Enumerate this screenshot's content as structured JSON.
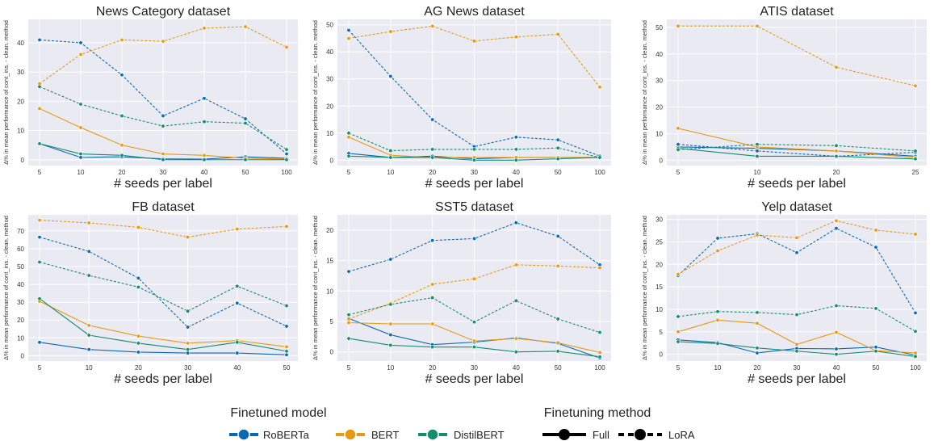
{
  "colors": {
    "RoBERTa": "#0a69b3",
    "BERT": "#e69a14",
    "DistilBERT": "#138d6e",
    "panel_bg": "#eaeaf2",
    "grid": "#ffffff"
  },
  "legend": {
    "model_title": "Finetuned model",
    "models": [
      "RoBERTa",
      "BERT",
      "DistilBERT"
    ],
    "method_title": "Finetuning method",
    "methods": [
      {
        "label": "Full",
        "dash": "solid"
      },
      {
        "label": "LoRA",
        "dash": "dashed"
      }
    ]
  },
  "chart_data": [
    {
      "type": "line",
      "title": "News Category dataset",
      "xlabel": "# seeds per label",
      "ylabel": "Δ% in mean performance of cont_ins. - clean. method",
      "categories": [
        "5",
        "10",
        "20",
        "30",
        "40",
        "50",
        "100"
      ],
      "ylim": [
        -2,
        48
      ],
      "yticks": [
        0,
        10,
        20,
        30,
        40
      ],
      "series": [
        {
          "model": "RoBERTa",
          "method": "Full",
          "values": [
            5.5,
            0.8,
            1.0,
            0.3,
            0.2,
            1.0,
            0.5
          ]
        },
        {
          "model": "RoBERTa",
          "method": "LoRA",
          "values": [
            41,
            40,
            29,
            15,
            21,
            14,
            2
          ]
        },
        {
          "model": "BERT",
          "method": "Full",
          "values": [
            17.5,
            11,
            5,
            2,
            1.5,
            0.5,
            0.2
          ]
        },
        {
          "model": "BERT",
          "method": "LoRA",
          "values": [
            26,
            36,
            41,
            40.5,
            45,
            45.5,
            38.5
          ]
        },
        {
          "model": "DistilBERT",
          "method": "Full",
          "values": [
            5.5,
            2,
            1.5,
            0,
            0,
            0,
            0
          ]
        },
        {
          "model": "DistilBERT",
          "method": "LoRA",
          "values": [
            25,
            19,
            15,
            11.5,
            13,
            12.5,
            3.5
          ]
        }
      ]
    },
    {
      "type": "line",
      "title": "AG News dataset",
      "xlabel": "# seeds per label",
      "ylabel": "Δ% in mean performance of cont_ins. - clean. method",
      "categories": [
        "5",
        "10",
        "20",
        "30",
        "40",
        "50",
        "100"
      ],
      "ylim": [
        -2,
        52
      ],
      "yticks": [
        0,
        10,
        20,
        30,
        40,
        50
      ],
      "series": [
        {
          "model": "RoBERTa",
          "method": "Full",
          "values": [
            2.5,
            1,
            1.5,
            0.5,
            1,
            1,
            1
          ]
        },
        {
          "model": "RoBERTa",
          "method": "LoRA",
          "values": [
            48,
            31,
            15,
            5,
            8.5,
            7.5,
            1.5
          ]
        },
        {
          "model": "BERT",
          "method": "Full",
          "values": [
            8.5,
            1.8,
            1,
            1,
            1,
            1,
            1
          ]
        },
        {
          "model": "BERT",
          "method": "LoRA",
          "values": [
            45,
            47.5,
            49.5,
            44,
            45.5,
            46.5,
            27
          ]
        },
        {
          "model": "DistilBERT",
          "method": "Full",
          "values": [
            1.5,
            1,
            1,
            0,
            0,
            0.5,
            1
          ]
        },
        {
          "model": "DistilBERT",
          "method": "LoRA",
          "values": [
            10,
            3.5,
            4,
            4,
            4,
            4.5,
            1
          ]
        }
      ]
    },
    {
      "type": "line",
      "title": "ATIS dataset",
      "xlabel": "# seeds per label",
      "ylabel": "Δ% in mean performance of cont_ins. - clean. method",
      "categories": [
        "5",
        "10",
        "20",
        "25"
      ],
      "ylim": [
        -2,
        53
      ],
      "yticks": [
        0,
        10,
        20,
        30,
        40,
        50
      ],
      "series": [
        {
          "model": "RoBERTa",
          "method": "Full",
          "values": [
            5,
            4.5,
            3.5,
            1.5
          ]
        },
        {
          "model": "RoBERTa",
          "method": "LoRA",
          "values": [
            6,
            3.5,
            1.5,
            3
          ]
        },
        {
          "model": "BERT",
          "method": "Full",
          "values": [
            12,
            5,
            3.5,
            1
          ]
        },
        {
          "model": "BERT",
          "method": "LoRA",
          "values": [
            50.5,
            50.5,
            35,
            28
          ]
        },
        {
          "model": "DistilBERT",
          "method": "Full",
          "values": [
            4.5,
            1.5,
            1.5,
            0.5
          ]
        },
        {
          "model": "DistilBERT",
          "method": "LoRA",
          "values": [
            4,
            6,
            5.5,
            3.5
          ]
        }
      ]
    },
    {
      "type": "line",
      "title": "FB dataset",
      "xlabel": "# seeds per label",
      "ylabel": "Δ% in mean performance of cont_ins. - clean. method",
      "categories": [
        "5",
        "10",
        "20",
        "30",
        "40",
        "50"
      ],
      "ylim": [
        -3,
        79
      ],
      "yticks": [
        0,
        10,
        20,
        30,
        40,
        50,
        60,
        70
      ],
      "series": [
        {
          "model": "RoBERTa",
          "method": "Full",
          "values": [
            7.5,
            3.5,
            2,
            1.5,
            1.5,
            0.5
          ]
        },
        {
          "model": "RoBERTa",
          "method": "LoRA",
          "values": [
            66.5,
            58.5,
            43.5,
            16,
            29.5,
            16.5
          ]
        },
        {
          "model": "BERT",
          "method": "Full",
          "values": [
            30.5,
            17,
            11,
            7,
            8.5,
            5
          ]
        },
        {
          "model": "BERT",
          "method": "LoRA",
          "values": [
            76,
            74.5,
            72,
            66.5,
            71,
            72.5
          ]
        },
        {
          "model": "DistilBERT",
          "method": "Full",
          "values": [
            32,
            11.5,
            7,
            3.5,
            7.5,
            2.5
          ]
        },
        {
          "model": "DistilBERT",
          "method": "LoRA",
          "values": [
            52.5,
            45,
            38.5,
            25,
            39,
            28
          ]
        }
      ]
    },
    {
      "type": "line",
      "title": "SST5 dataset",
      "xlabel": "# seeds per label",
      "ylabel": "Δ% in mean performance of cont_ins. - clean. method",
      "categories": [
        "5",
        "10",
        "20",
        "30",
        "40",
        "50",
        "100"
      ],
      "ylim": [
        -1.5,
        22.5
      ],
      "yticks": [
        0,
        5,
        10,
        15,
        20
      ],
      "series": [
        {
          "model": "RoBERTa",
          "method": "Full",
          "values": [
            5.5,
            2.8,
            1.2,
            1.6,
            2.3,
            1.4,
            -1.0
          ]
        },
        {
          "model": "RoBERTa",
          "method": "LoRA",
          "values": [
            13.2,
            15.2,
            18.3,
            18.6,
            21.2,
            19,
            14.3
          ]
        },
        {
          "model": "BERT",
          "method": "Full",
          "values": [
            4.8,
            4.6,
            4.6,
            1.8,
            2.2,
            1.5,
            -0.1
          ]
        },
        {
          "model": "BERT",
          "method": "LoRA",
          "values": [
            5.4,
            8.0,
            11.1,
            12.0,
            14.3,
            14.1,
            13.8
          ]
        },
        {
          "model": "DistilBERT",
          "method": "Full",
          "values": [
            2.2,
            1.1,
            0.8,
            0.8,
            0,
            0.1,
            -0.8
          ]
        },
        {
          "model": "DistilBERT",
          "method": "LoRA",
          "values": [
            6.1,
            7.8,
            8.9,
            4.9,
            8.4,
            5.4,
            3.2
          ]
        }
      ]
    },
    {
      "type": "line",
      "title": "Yelp dataset",
      "xlabel": "# seeds per label",
      "ylabel": "Δ% in mean performance of cont_ins. - clean. method",
      "categories": [
        "5",
        "10",
        "20",
        "30",
        "40",
        "50",
        "100"
      ],
      "ylim": [
        -1.5,
        31
      ],
      "yticks": [
        0,
        5,
        10,
        15,
        20,
        25,
        30
      ],
      "series": [
        {
          "model": "RoBERTa",
          "method": "Full",
          "values": [
            3.2,
            2.6,
            0.3,
            1.3,
            1.2,
            1.6,
            -0.2
          ]
        },
        {
          "model": "RoBERTa",
          "method": "LoRA",
          "values": [
            17.5,
            25.8,
            26.8,
            22.6,
            28,
            23.8,
            9.2
          ]
        },
        {
          "model": "BERT",
          "method": "Full",
          "values": [
            5,
            7.6,
            6.9,
            2.2,
            4.9,
            0.8,
            0.3
          ]
        },
        {
          "model": "BERT",
          "method": "LoRA",
          "values": [
            17.8,
            23,
            26.5,
            25.9,
            29.7,
            27.6,
            26.7
          ]
        },
        {
          "model": "DistilBERT",
          "method": "Full",
          "values": [
            2.8,
            2.4,
            1.4,
            0.7,
            0,
            0.7,
            -0.5
          ]
        },
        {
          "model": "DistilBERT",
          "method": "LoRA",
          "values": [
            8.4,
            9.5,
            9.3,
            8.8,
            10.8,
            10.2,
            5.1
          ]
        }
      ]
    }
  ]
}
